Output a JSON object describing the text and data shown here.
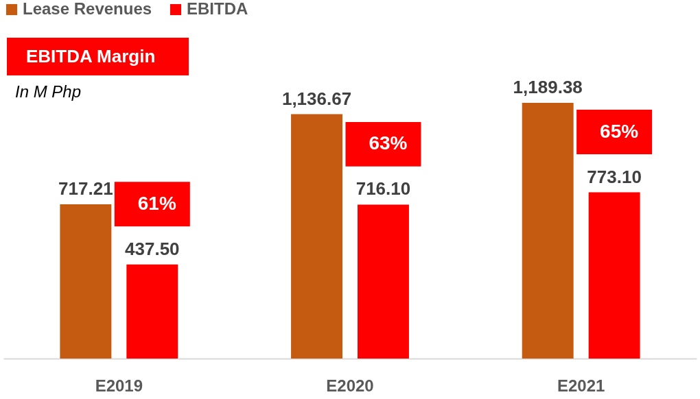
{
  "chart_data": {
    "type": "bar",
    "categories": [
      "E2019",
      "E2020",
      "E2021"
    ],
    "series": [
      {
        "name": "Lease Revenues",
        "color": "#c55a11",
        "values": [
          717.21,
          1136.67,
          1189.38
        ],
        "value_labels": [
          "717.21",
          "1,136.67",
          "1,189.38"
        ]
      },
      {
        "name": "EBITDA",
        "color": "#ff0000",
        "values": [
          437.5,
          716.1,
          773.1
        ],
        "value_labels": [
          "437.50",
          "716.10",
          "773.10"
        ]
      }
    ],
    "annotations": [
      "EBITDA Margin",
      "In M Php",
      "61%",
      "63%",
      "65%"
    ],
    "legend": "top left"
  }
}
